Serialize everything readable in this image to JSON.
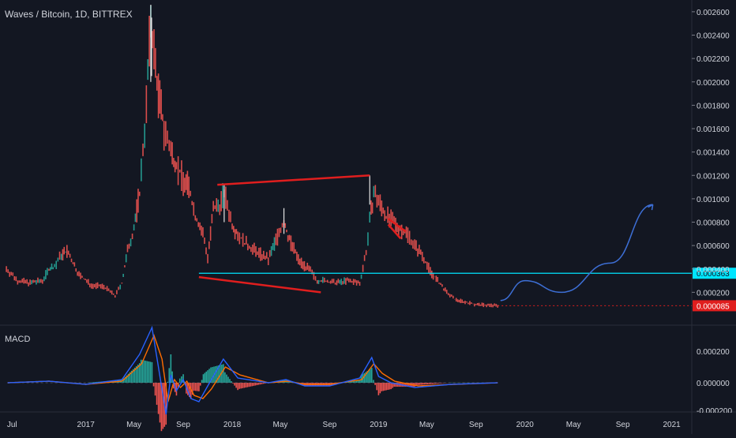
{
  "header": {
    "symbol_line": "Waves / Bitcoin, 1D, BITTREX"
  },
  "macd_label": "MACD",
  "colors": {
    "background": "#131722",
    "up": "#26a69a",
    "down": "#ef5350",
    "drawing_red": "#e01e1e",
    "drawing_cyan": "#00e5ff",
    "projection": "#3d6fd6",
    "macd_line": "#2962ff",
    "signal_line": "#ff6d00",
    "last_price_bg": "#e01e1e",
    "support_price_bg": "#00e5ff"
  },
  "chart_data": [
    {
      "type": "line",
      "title": "Waves / Bitcoin, 1D, BITTREX",
      "x_ticks": [
        "Jul",
        "2017",
        "May",
        "Sep",
        "2018",
        "May",
        "Sep",
        "2019",
        "May",
        "Sep",
        "2020",
        "May",
        "Sep",
        "2021"
      ],
      "x_tick_dates": [
        "2016-07",
        "2017-01",
        "2017-05",
        "2017-09",
        "2018-01",
        "2018-05",
        "2018-09",
        "2019-01",
        "2019-05",
        "2019-09",
        "2020-01",
        "2020-05",
        "2020-09",
        "2021-01"
      ],
      "y_ticks": [
        "0.000200",
        "0.000400",
        "0.000600",
        "0.000800",
        "0.001000",
        "0.001200",
        "0.001400",
        "0.001600",
        "0.001800",
        "0.002000",
        "0.002200",
        "0.002400",
        "0.002600"
      ],
      "ylim": [
        0.0,
        0.00266
      ],
      "series": [
        {
          "x": [
            "2016-06-17",
            "2016-07-15",
            "2016-08-15",
            "2016-09-15",
            "2016-10-01",
            "2016-10-15",
            "2016-11-01",
            "2016-11-15",
            "2016-12-15",
            "2017-01-15",
            "2017-02-15",
            "2017-03-15",
            "2017-04-01",
            "2017-04-15",
            "2017-05-01",
            "2017-05-15",
            "2017-06-01",
            "2017-06-12",
            "2017-06-20",
            "2017-07-01",
            "2017-07-15",
            "2017-08-01",
            "2017-08-15",
            "2017-09-01",
            "2017-09-15",
            "2017-10-01",
            "2017-10-20",
            "2017-11-01",
            "2017-11-15",
            "2017-12-01",
            "2017-12-12",
            "2018-01-01",
            "2018-01-15",
            "2018-02-01",
            "2018-03-01",
            "2018-04-01",
            "2018-04-20",
            "2018-05-10",
            "2018-05-20",
            "2018-06-15",
            "2018-07-15",
            "2018-08-01",
            "2018-08-15",
            "2018-09-15",
            "2018-10-15",
            "2018-11-15",
            "2018-12-01",
            "2018-12-10",
            "2018-12-20",
            "2019-01-05",
            "2019-01-20",
            "2019-02-05",
            "2019-02-20",
            "2019-03-15",
            "2019-04-01",
            "2019-04-20",
            "2019-05-10",
            "2019-06-01",
            "2019-06-20",
            "2019-07-10",
            "2019-08-01",
            "2019-09-01",
            "2019-10-01",
            "2019-10-25"
          ],
          "values": [
            0.0004,
            0.0003,
            0.00028,
            0.0003,
            0.0004,
            0.00042,
            0.00052,
            0.00055,
            0.00035,
            0.00026,
            0.00025,
            0.00017,
            0.00028,
            0.00055,
            0.00075,
            0.00105,
            0.0018,
            0.00255,
            0.00225,
            0.0019,
            0.0016,
            0.0014,
            0.0013,
            0.00115,
            0.0011,
            0.00085,
            0.0007,
            0.0005,
            0.0009,
            0.00095,
            0.00105,
            0.00078,
            0.0007,
            0.00062,
            0.00055,
            0.00048,
            0.00065,
            0.0008,
            0.00068,
            0.00048,
            0.00038,
            0.0003,
            0.0003,
            0.00028,
            0.0003,
            0.00028,
            0.00055,
            0.0008,
            0.00105,
            0.00095,
            0.00085,
            0.0008,
            0.00075,
            0.0007,
            0.0006,
            0.00052,
            0.00038,
            0.00028,
            0.0002,
            0.00014,
            0.00012,
            9.5e-05,
            9e-05,
            8.5e-05
          ]
        }
      ],
      "annotations": [
        {
          "type": "trendline",
          "from": [
            "2017-11-25",
            0.00112
          ],
          "to": [
            "2018-12-10",
            0.0012
          ],
          "color": "#e01e1e"
        },
        {
          "type": "trendline",
          "from": [
            "2017-10-10",
            0.00033
          ],
          "to": [
            "2018-08-10",
            0.0002
          ],
          "color": "#e01e1e"
        },
        {
          "type": "trendline",
          "from": [
            "2019-01-25",
            0.00083
          ],
          "to": [
            "2019-03-10",
            0.00072
          ],
          "color": "#e01e1e"
        },
        {
          "type": "trendline",
          "from": [
            "2019-01-25",
            0.00078
          ],
          "to": [
            "2019-02-25",
            0.00066
          ],
          "color": "#e01e1e"
        },
        {
          "type": "hline",
          "value": 0.000363,
          "label": "0.000363",
          "color": "#00e5ff"
        },
        {
          "type": "price_label",
          "value": 8.5e-05,
          "label": "0.000085",
          "color": "#e01e1e"
        },
        {
          "type": "projection_curve",
          "points": [
            [
              "2019-11-01",
              0.00013
            ],
            [
              "2020-01-01",
              0.0003
            ],
            [
              "2020-04-01",
              0.0002
            ],
            [
              "2020-08-01",
              0.00045
            ],
            [
              "2020-11-15",
              0.00095
            ]
          ],
          "color": "#3d6fd6"
        }
      ]
    },
    {
      "type": "line",
      "title": "MACD",
      "y_ticks": [
        "0.000200",
        "0.000000"
      ],
      "clipped_tick": "0.000200",
      "series": [
        {
          "name": "MACD",
          "x": [
            "2016-06-20",
            "2016-10-01",
            "2017-01-01",
            "2017-04-01",
            "2017-05-15",
            "2017-06-15",
            "2017-07-01",
            "2017-07-20",
            "2017-08-01",
            "2017-08-15",
            "2017-09-01",
            "2017-09-20",
            "2017-10-10",
            "2017-11-01",
            "2017-12-10",
            "2018-01-15",
            "2018-04-01",
            "2018-05-15",
            "2018-07-01",
            "2018-09-01",
            "2018-11-15",
            "2018-12-15",
            "2019-01-01",
            "2019-02-01",
            "2019-04-01",
            "2019-07-01",
            "2019-10-25"
          ],
          "values": [
            0.0,
            1e-05,
            -1e-05,
            2e-05,
            0.00018,
            0.00035,
            0.0001,
            -0.0002,
            5e-05,
            -5e-05,
            2e-05,
            -0.0001,
            -0.00012,
            -2e-05,
            0.00015,
            3e-05,
            0.0,
            2e-05,
            -2e-05,
            -2e-05,
            3e-05,
            0.00016,
            4e-05,
            0.0,
            -3e-05,
            -1e-05,
            0.0
          ]
        },
        {
          "name": "Signal",
          "x": [
            "2016-06-20",
            "2016-10-01",
            "2017-01-01",
            "2017-04-01",
            "2017-05-20",
            "2017-06-20",
            "2017-07-10",
            "2017-07-25",
            "2017-08-10",
            "2017-08-25",
            "2017-09-10",
            "2017-09-28",
            "2017-10-20",
            "2017-11-10",
            "2017-12-15",
            "2018-01-20",
            "2018-04-01",
            "2018-05-20",
            "2018-07-01",
            "2018-09-01",
            "2018-11-20",
            "2018-12-20",
            "2019-01-10",
            "2019-02-10",
            "2019-04-10",
            "2019-07-10",
            "2019-10-25"
          ],
          "values": [
            0.0,
            1e-05,
            -1e-05,
            1e-05,
            0.00012,
            0.0003,
            0.00015,
            -0.00012,
            2e-05,
            -3e-05,
            1e-05,
            -8e-05,
            -0.0001,
            -4e-05,
            0.0001,
            5e-05,
            0.0,
            1e-05,
            -1e-05,
            -1e-05,
            2e-05,
            0.00012,
            6e-05,
            1e-05,
            -2e-05,
            -1e-05,
            0.0
          ]
        }
      ]
    }
  ]
}
